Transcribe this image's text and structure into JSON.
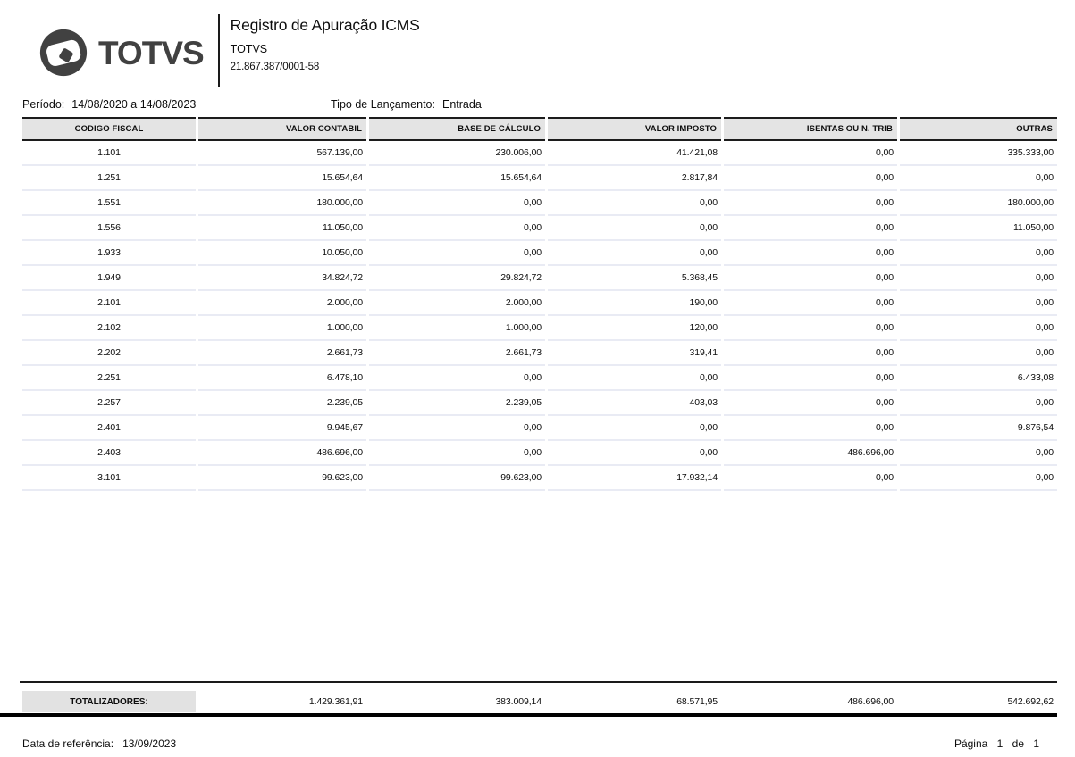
{
  "header": {
    "logo_text": "TOTVS",
    "title": "Registro de Apuração ICMS",
    "company": "TOTVS",
    "cnpj": "21.867.387/0001-58"
  },
  "filters": {
    "period_label": "Período:",
    "period_value": "14/08/2020  a  14/08/2023",
    "entry_type_label": "Tipo de Lançamento:",
    "entry_type_value": "Entrada"
  },
  "table": {
    "columns": [
      "CODIGO FISCAL",
      "VALOR CONTABIL",
      "BASE DE CÁLCULO",
      "VALOR IMPOSTO",
      "ISENTAS OU N. TRIB",
      "OUTRAS"
    ],
    "rows": [
      [
        "1.101",
        "567.139,00",
        "230.006,00",
        "41.421,08",
        "0,00",
        "335.333,00"
      ],
      [
        "1.251",
        "15.654,64",
        "15.654,64",
        "2.817,84",
        "0,00",
        "0,00"
      ],
      [
        "1.551",
        "180.000,00",
        "0,00",
        "0,00",
        "0,00",
        "180.000,00"
      ],
      [
        "1.556",
        "11.050,00",
        "0,00",
        "0,00",
        "0,00",
        "11.050,00"
      ],
      [
        "1.933",
        "10.050,00",
        "0,00",
        "0,00",
        "0,00",
        "0,00"
      ],
      [
        "1.949",
        "34.824,72",
        "29.824,72",
        "5.368,45",
        "0,00",
        "0,00"
      ],
      [
        "2.101",
        "2.000,00",
        "2.000,00",
        "190,00",
        "0,00",
        "0,00"
      ],
      [
        "2.102",
        "1.000,00",
        "1.000,00",
        "120,00",
        "0,00",
        "0,00"
      ],
      [
        "2.202",
        "2.661,73",
        "2.661,73",
        "319,41",
        "0,00",
        "0,00"
      ],
      [
        "2.251",
        "6.478,10",
        "0,00",
        "0,00",
        "0,00",
        "6.433,08"
      ],
      [
        "2.257",
        "2.239,05",
        "2.239,05",
        "403,03",
        "0,00",
        "0,00"
      ],
      [
        "2.401",
        "9.945,67",
        "0,00",
        "0,00",
        "0,00",
        "9.876,54"
      ],
      [
        "2.403",
        "486.696,00",
        "0,00",
        "0,00",
        "486.696,00",
        "0,00"
      ],
      [
        "3.101",
        "99.623,00",
        "99.623,00",
        "17.932,14",
        "0,00",
        "0,00"
      ]
    ],
    "totals_label": "TOTALIZADORES:",
    "totals": [
      "1.429.361,91",
      "383.009,14",
      "68.571,95",
      "486.696,00",
      "542.692,62"
    ]
  },
  "footer": {
    "reference_label": "Data de referência:",
    "reference_value": "13/09/2023",
    "page_label": "Página 1 de 1"
  },
  "colors": {
    "logo": "#414141",
    "table_header_bg": "#e4e4e4",
    "row_divider": "#e9ebf4",
    "border": "#1a1a1a",
    "totals_label_bg": "#e2e2e2"
  }
}
